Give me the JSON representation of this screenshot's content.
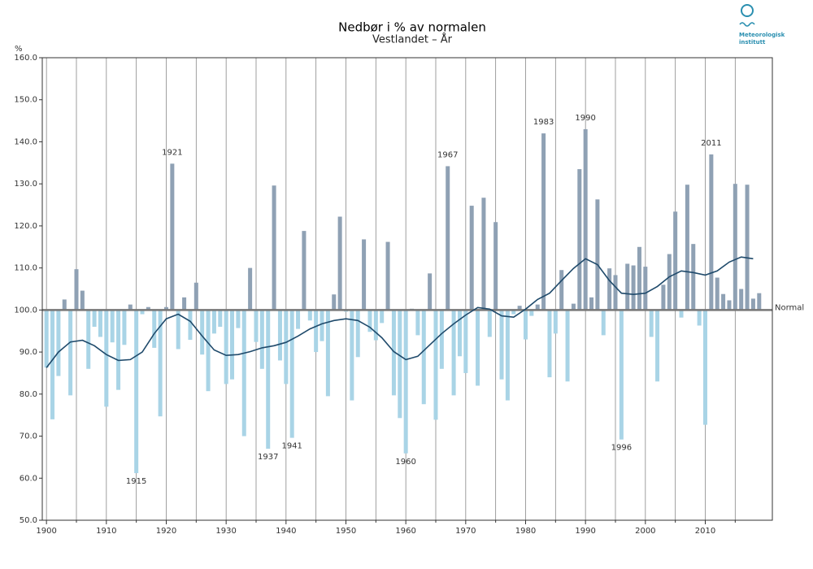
{
  "chart_data": {
    "type": "bar",
    "title": "Nedbør i % av normalen",
    "subtitle": "Vestlandet – År",
    "ylabel": "%",
    "logo": [
      "Meteorologisk",
      "institutt"
    ],
    "x": [
      1900,
      1901,
      1902,
      1903,
      1904,
      1905,
      1906,
      1907,
      1908,
      1909,
      1910,
      1911,
      1912,
      1913,
      1914,
      1915,
      1916,
      1917,
      1918,
      1919,
      1920,
      1921,
      1922,
      1923,
      1924,
      1925,
      1926,
      1927,
      1928,
      1929,
      1930,
      1931,
      1932,
      1933,
      1934,
      1935,
      1936,
      1937,
      1938,
      1939,
      1940,
      1941,
      1942,
      1943,
      1944,
      1945,
      1946,
      1947,
      1948,
      1949,
      1950,
      1951,
      1952,
      1953,
      1954,
      1955,
      1956,
      1957,
      1958,
      1959,
      1960,
      1961,
      1962,
      1963,
      1964,
      1965,
      1966,
      1967,
      1968,
      1969,
      1970,
      1971,
      1972,
      1973,
      1974,
      1975,
      1976,
      1977,
      1978,
      1979,
      1980,
      1981,
      1982,
      1983,
      1984,
      1985,
      1986,
      1987,
      1988,
      1989,
      1990,
      1991,
      1992,
      1993,
      1994,
      1995,
      1996,
      1997,
      1998,
      1999,
      2000,
      2001,
      2002,
      2003,
      2004,
      2005,
      2006,
      2007,
      2008,
      2009,
      2010,
      2011,
      2012,
      2013,
      2014,
      2015,
      2016,
      2017,
      2018,
      2019
    ],
    "values": [
      86.3,
      74,
      84.3,
      102.5,
      79.7,
      109.7,
      104.6,
      86,
      96,
      93.6,
      77,
      92.3,
      81,
      91.7,
      101.3,
      61.2,
      99,
      100.7,
      91,
      74.7,
      100.7,
      134.8,
      90.7,
      103,
      92.9,
      106.5,
      89.4,
      80.7,
      94.4,
      96,
      82.4,
      83.5,
      95.7,
      70,
      110,
      92.4,
      86,
      67,
      129.6,
      88,
      82.4,
      69.6,
      95.5,
      118.8,
      97.5,
      90,
      92.6,
      79.5,
      103.7,
      122.2,
      99.6,
      78.5,
      88.8,
      116.8,
      94.8,
      92.8,
      96.9,
      116.2,
      79.7,
      74.3,
      65.9,
      100.3,
      94,
      77.6,
      108.7,
      73.9,
      86,
      134.2,
      79.7,
      89,
      85,
      124.8,
      82,
      126.7,
      93.6,
      120.9,
      83.5,
      78.5,
      99,
      101,
      93,
      98.6,
      101.3,
      142,
      84,
      94.4,
      109.5,
      83,
      101.5,
      133.5,
      143,
      103,
      126.3,
      94,
      109.9,
      108.3,
      69.2,
      111,
      110.6,
      115,
      110.3,
      93.6,
      83,
      106,
      113.3,
      123.4,
      98.2,
      129.8,
      115.7,
      96.3,
      72.7,
      137,
      107.7,
      103.8,
      102.3,
      130,
      105,
      129.8,
      102.7,
      104
    ],
    "colors": {
      "above": "#8fa1b4",
      "below": "#a9d4e6"
    },
    "smooth": {
      "color": "#1f4a6b",
      "x": [
        1900,
        1902,
        1904,
        1906,
        1908,
        1910,
        1912,
        1914,
        1916,
        1918,
        1920,
        1922,
        1924,
        1926,
        1928,
        1930,
        1932,
        1934,
        1936,
        1938,
        1940,
        1942,
        1944,
        1946,
        1948,
        1950,
        1952,
        1954,
        1956,
        1958,
        1960,
        1962,
        1964,
        1966,
        1968,
        1970,
        1972,
        1974,
        1976,
        1978,
        1980,
        1982,
        1984,
        1986,
        1988,
        1990,
        1992,
        1994,
        1996,
        1998,
        2000,
        2002,
        2004,
        2006,
        2008,
        2010,
        2012,
        2014,
        2016,
        2018
      ],
      "values": [
        86.3,
        90,
        92.4,
        92.8,
        91.5,
        89.4,
        88,
        88.2,
        90,
        94.4,
        97.9,
        99,
        97.3,
        93.8,
        90.5,
        89.2,
        89.4,
        90.1,
        91,
        91.5,
        92.3,
        93.8,
        95.5,
        96.7,
        97.5,
        97.9,
        97.5,
        95.9,
        93.4,
        90.1,
        88.2,
        89,
        91.7,
        94.4,
        96.7,
        98.8,
        100.6,
        100.2,
        98.6,
        98.3,
        100.2,
        102.5,
        104,
        107,
        109.9,
        112.2,
        110.8,
        107,
        104,
        103.7,
        104,
        105.6,
        107.9,
        109.3,
        108.9,
        108.3,
        109.3,
        111.4,
        112.6,
        112.2
      ]
    },
    "reference_line": {
      "value": 100,
      "label": "Normal"
    },
    "annotations": [
      1915,
      1921,
      1937,
      1941,
      1960,
      1967,
      1983,
      1990,
      1996,
      2011
    ],
    "xlim": [
      1899.3,
      2021.2
    ],
    "xticks": [
      1900,
      1910,
      1920,
      1930,
      1940,
      1950,
      1960,
      1970,
      1980,
      1990,
      2000,
      2010
    ],
    "xminor_ticks": [
      1905,
      1915,
      1925,
      1935,
      1945,
      1955,
      1965,
      1975,
      1985,
      1995,
      2005,
      2015
    ],
    "ylim": [
      50,
      160
    ],
    "yticks": [
      {
        "value": 50,
        "label": "50.0"
      },
      {
        "value": 60,
        "label": "60.0"
      },
      {
        "value": 70,
        "label": "70.0"
      },
      {
        "value": 80,
        "label": "80.0"
      },
      {
        "value": 90,
        "label": "90.0"
      },
      {
        "value": 100,
        "label": "100.0"
      },
      {
        "value": 110,
        "label": "110.0"
      },
      {
        "value": 120,
        "label": "120.0"
      },
      {
        "value": 130,
        "label": "130.0"
      },
      {
        "value": 140,
        "label": "140.0"
      },
      {
        "value": 150,
        "label": "150.0"
      },
      {
        "value": 160,
        "label": "160.0"
      }
    ]
  }
}
